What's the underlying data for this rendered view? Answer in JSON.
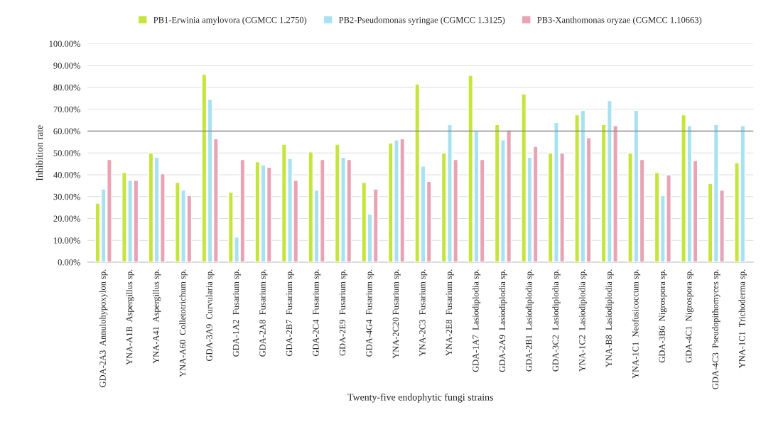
{
  "chart_data": {
    "type": "bar",
    "xlabel": "Twenty-five endophytic fungi strains",
    "ylabel": "Inhibition rate",
    "categories": [
      "GDA-2A3  Annulohypoxylon sp.",
      "YNA-A1B  Aspergillus sp.",
      "YNA-A41  Aspergillus sp.",
      "YNA-A60  Colletotrichum sp.",
      "GDA-3A9  Curvularia sp.",
      "GDA-1A2  Fusarium sp.",
      "GDA-2A8  Fusarium sp.",
      "GDA-2B7  Fusarium sp.",
      "GDA-2C4  Fusarium sp.",
      "GDA-2E9  Fusarium sp.",
      "GDA-4G4  Fusarium sp.",
      "YNA-2C20 Fusarium sp.",
      "YNA-2C3  Fusarium sp.",
      "YNA-2E8  Fusarium sp.",
      "GDA-1A7  Lasiodiplodia sp.",
      "GDA-2A9  Lasiodiplodia sp.",
      "GDA-2B1  Lasiodiplodia sp.",
      "GDA-3C2  Lasiodiplodia sp.",
      "YNA-1C2  Lasiodiplodia sp.",
      "YNA-B8  Lasiodiplodia sp.",
      "YNA-1C1  Neofusicoccum sp.",
      "GDA-3B6  Nigrospora sp.",
      "GDA-4C1  Nigrospora sp.",
      "GDA-4C3  Pseudopithomyces sp.",
      "YNA-1C1  Trichoderma sp."
    ],
    "series": [
      {
        "name": "PB1-Erwinia amylovora (CGMCC 1.2750)",
        "color": "#c4e63c",
        "values": [
          27,
          41,
          50,
          36.5,
          86,
          32,
          46,
          54,
          50.5,
          54,
          36.5,
          54.5,
          81.5,
          50,
          85.5,
          63,
          77,
          50,
          67.5,
          63,
          50,
          41,
          67.5,
          36,
          45.5
        ]
      },
      {
        "name": "PB2-Pseudomonas syringae (CGMCC 1.3125)",
        "color": "#a8e2f2",
        "values": [
          33.5,
          37.5,
          48,
          33,
          74.5,
          11.5,
          44.5,
          47.5,
          33,
          48,
          22,
          56,
          44,
          63,
          60,
          56,
          48,
          64,
          69.5,
          74,
          69.5,
          30.5,
          62.5,
          63,
          62.5
        ]
      },
      {
        "name": "PB3-Xanthomonas oryzae (CGMCC 1.10663)",
        "color": "#e8a4b4",
        "values": [
          47,
          37.5,
          40.5,
          30.5,
          56.5,
          47,
          43.5,
          37.5,
          47,
          47,
          33.5,
          56.5,
          37,
          47,
          47,
          60.5,
          53,
          50,
          57,
          62.5,
          47,
          40,
          46.5,
          33,
          null
        ]
      }
    ],
    "ylim": [
      0,
      100
    ],
    "yticks": [
      {
        "value": 0,
        "label": "0.00%"
      },
      {
        "value": 10,
        "label": "10.00%"
      },
      {
        "value": 20,
        "label": "20.00%"
      },
      {
        "value": 30,
        "label": "30.00%"
      },
      {
        "value": 40,
        "label": "40.00%"
      },
      {
        "value": 50,
        "label": "50.00%"
      },
      {
        "value": 60,
        "label": "60.00%"
      },
      {
        "value": 70,
        "label": "70.00%"
      },
      {
        "value": 80,
        "label": "80.00%"
      },
      {
        "value": 90,
        "label": "90.00%"
      },
      {
        "value": 100,
        "label": "100.00%"
      }
    ],
    "ref_lines": [
      {
        "axis": "y",
        "value": 60,
        "color": "#8c8c8c"
      }
    ],
    "grid": "y",
    "legend": "top"
  }
}
